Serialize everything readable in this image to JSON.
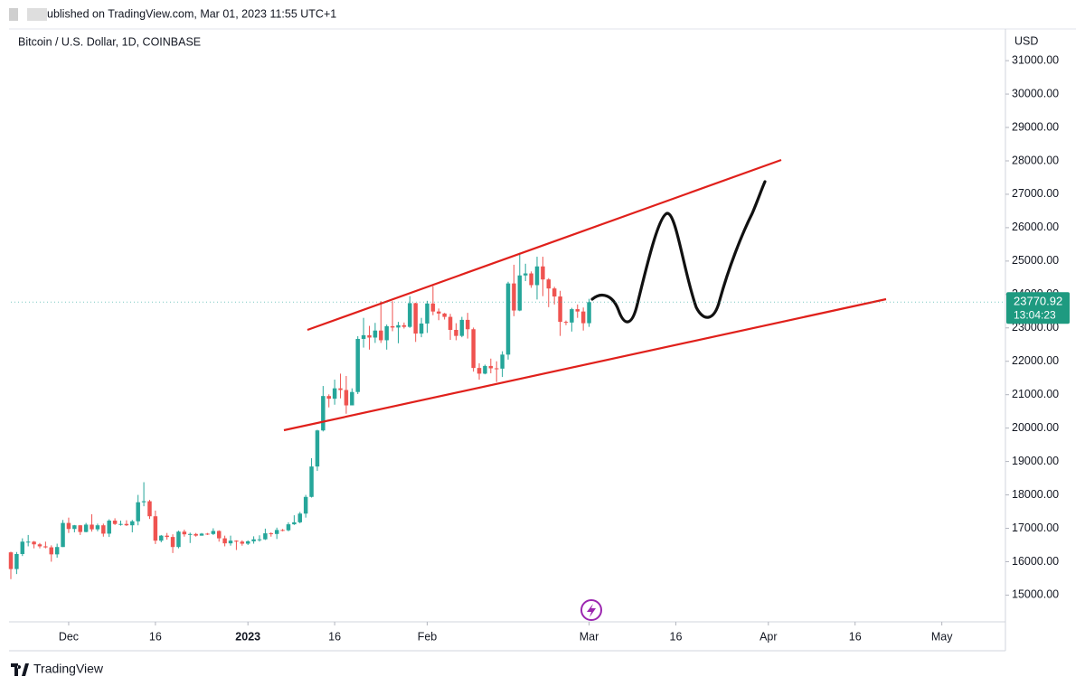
{
  "chart_data": {
    "type": "candlestick",
    "header": "ublished on TradingView.com, Mar 01, 2023 11:55 UTC+1",
    "title": "Bitcoin / U.S. Dollar, 1D, COINBASE",
    "y_axis_label": "USD",
    "footer": "TradingView",
    "up_color": "#26a69a",
    "down_color": "#ef5350",
    "grid": false,
    "last_price": 23770.92,
    "countdown": "13:04:23",
    "xlim": [
      0,
      172
    ],
    "ylim": [
      14200,
      31950
    ],
    "xticks": [
      {
        "value": 10,
        "label": "Dec"
      },
      {
        "value": 25,
        "label": "16"
      },
      {
        "value": 41,
        "label": "2023"
      },
      {
        "value": 56,
        "label": "16"
      },
      {
        "value": 72,
        "label": "Feb"
      },
      {
        "value": 100,
        "label": "Mar"
      },
      {
        "value": 115,
        "label": "16"
      },
      {
        "value": 131,
        "label": "Apr"
      },
      {
        "value": 146,
        "label": "16"
      },
      {
        "value": 161,
        "label": "May"
      }
    ],
    "yticks": [
      {
        "value": 15000,
        "label": "15000.00"
      },
      {
        "value": 16000,
        "label": "16000.00"
      },
      {
        "value": 17000,
        "label": "17000.00"
      },
      {
        "value": 18000,
        "label": "18000.00"
      },
      {
        "value": 19000,
        "label": "19000.00"
      },
      {
        "value": 20000,
        "label": "20000.00"
      },
      {
        "value": 21000,
        "label": "21000.00"
      },
      {
        "value": 22000,
        "label": "22000.00"
      },
      {
        "value": 23000,
        "label": "23000.00"
      },
      {
        "value": 24000,
        "label": "24000.00"
      },
      {
        "value": 25000,
        "label": "25000.00"
      },
      {
        "value": 26000,
        "label": "26000.00"
      },
      {
        "value": 27000,
        "label": "27000.00"
      },
      {
        "value": 28000,
        "label": "28000.00"
      },
      {
        "value": 29000,
        "label": "29000.00"
      },
      {
        "value": 30000,
        "label": "30000.00"
      },
      {
        "value": 31000,
        "label": "31000.00"
      }
    ],
    "open": [
      16280,
      15780,
      16230,
      16600,
      16600,
      16520,
      16460,
      16430,
      16220,
      16440,
      17160,
      16980,
      17090,
      16890,
      17110,
      16970,
      17090,
      16840,
      17230,
      17130,
      17130,
      17090,
      17210,
      17780,
      17810,
      17360,
      16630,
      16780,
      16740,
      16440,
      16900,
      16820,
      16830,
      16780,
      16840,
      16830,
      16920,
      16700,
      16550,
      16630,
      16600,
      16540,
      16610,
      16670,
      16670,
      16850,
      16830,
      16950,
      16940,
      17120,
      17180,
      17440,
      17940,
      18850,
      19930,
      20960,
      20880,
      21190,
      21140,
      20680,
      21080,
      22670,
      22780,
      22710,
      22920,
      22630,
      23050,
      23010,
      23080,
      23030,
      23740,
      22830,
      23130,
      23730,
      23490,
      23430,
      23330,
      22940,
      22760,
      23240,
      22960,
      21800,
      21630,
      21860,
      21790,
      21780,
      22200,
      24330,
      23520,
      24570,
      24630,
      24280,
      24840,
      24450,
      24180,
      23940,
      23180,
      23160,
      23560,
      23490,
      23140
    ],
    "high": [
      16300,
      16290,
      16700,
      16800,
      16620,
      16560,
      16600,
      16490,
      16540,
      17250,
      17320,
      17100,
      17100,
      17160,
      17420,
      17140,
      17140,
      17270,
      17300,
      17230,
      17240,
      17250,
      18000,
      18380,
      17850,
      17530,
      16800,
      16860,
      16820,
      16930,
      16960,
      16870,
      16860,
      16860,
      16860,
      17000,
      16940,
      16780,
      16780,
      16640,
      16640,
      16640,
      16760,
      16790,
      16990,
      16880,
      17020,
      16980,
      17180,
      17390,
      17490,
      18000,
      19100,
      19950,
      21260,
      21010,
      21450,
      21630,
      21560,
      21190,
      22750,
      23300,
      23060,
      23150,
      23800,
      23100,
      23800,
      23180,
      23160,
      23950,
      23750,
      23300,
      23810,
      24250,
      23580,
      23450,
      23420,
      23140,
      23330,
      23450,
      23010,
      21940,
      21900,
      22080,
      22000,
      22300,
      24380,
      24890,
      25250,
      24920,
      24690,
      25130,
      25130,
      24490,
      24230,
      24110,
      23220,
      23600,
      23700,
      23610,
      23870
    ],
    "low": [
      15480,
      15630,
      16170,
      16460,
      16400,
      16400,
      16400,
      16000,
      16120,
      16440,
      16860,
      16880,
      16800,
      16880,
      16900,
      16910,
      16750,
      16740,
      17100,
      17080,
      17070,
      16880,
      17090,
      17660,
      17280,
      16530,
      16580,
      16660,
      16260,
      16400,
      16750,
      16560,
      16750,
      16780,
      16800,
      16800,
      16600,
      16460,
      16480,
      16350,
      16480,
      16500,
      16540,
      16600,
      16650,
      16750,
      16680,
      16910,
      16910,
      17100,
      17150,
      17320,
      17920,
      18720,
      19900,
      20620,
      20700,
      20890,
      20430,
      20680,
      21020,
      22410,
      22350,
      22550,
      22550,
      22350,
      22900,
      22540,
      22980,
      23000,
      22580,
      22720,
      22850,
      23380,
      23230,
      23250,
      22640,
      22630,
      22720,
      22680,
      21690,
      21450,
      21610,
      21640,
      21380,
      21530,
      22050,
      23350,
      23500,
      24400,
      24200,
      23850,
      23950,
      23620,
      23700,
      22760,
      23080,
      22890,
      23300,
      22920,
      23030
    ],
    "close": [
      15780,
      16230,
      16600,
      16600,
      16520,
      16460,
      16430,
      16220,
      16440,
      17160,
      16980,
      17090,
      16890,
      17110,
      16970,
      17090,
      16840,
      17230,
      17130,
      17130,
      17090,
      17210,
      17780,
      17810,
      17360,
      16630,
      16780,
      16740,
      16440,
      16900,
      16820,
      16830,
      16780,
      16840,
      16830,
      16920,
      16700,
      16550,
      16630,
      16600,
      16540,
      16610,
      16670,
      16670,
      16850,
      16830,
      16950,
      16940,
      17120,
      17180,
      17440,
      17940,
      18850,
      19930,
      20960,
      20880,
      21190,
      21140,
      20680,
      21080,
      22670,
      22780,
      22710,
      22920,
      22630,
      23050,
      23010,
      23080,
      23030,
      23740,
      22830,
      23130,
      23730,
      23490,
      23430,
      23330,
      22940,
      22760,
      23240,
      22960,
      21800,
      21630,
      21860,
      21790,
      21780,
      22200,
      24330,
      23520,
      24570,
      24630,
      24280,
      24840,
      24450,
      24180,
      23940,
      23180,
      23160,
      23560,
      23490,
      23140,
      23770
    ]
  }
}
